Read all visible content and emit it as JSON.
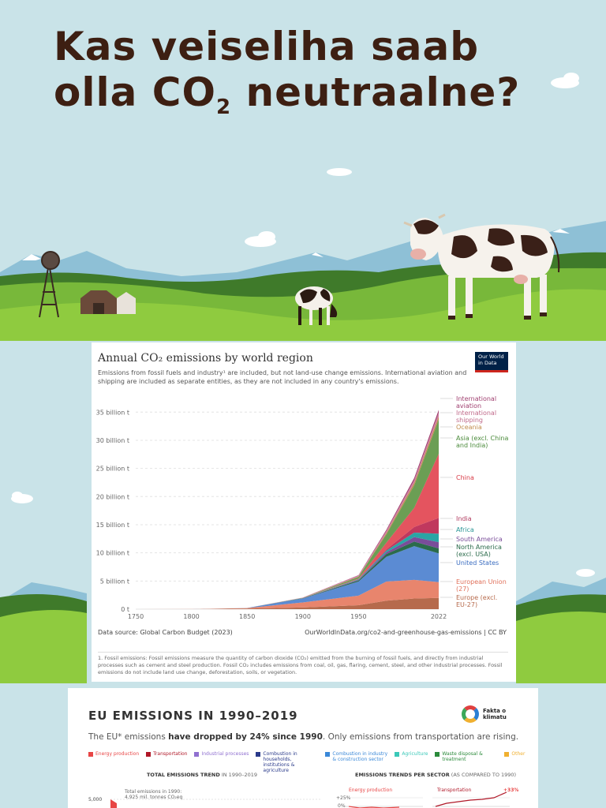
{
  "slide1": {
    "title_main": "Kas veiseliha saab olla CO",
    "title_sub": "2",
    "title_end": " neutraalne?"
  },
  "chart_card": {
    "title": "Annual CO₂ emissions by world region",
    "subtitle": "Emissions from fossil fuels and industry¹ are included, but not land-use change emissions. International aviation and shipping are included as separate entities, as they are not included in any country's emissions.",
    "logo": "Our World in Data",
    "source_left": "Data source: Global Carbon Budget (2023)",
    "source_right": "OurWorldInData.org/co2-and-greenhouse-gas-emissions | CC BY",
    "note": "1. Fossil emissions: Fossil emissions measure the quantity of carbon dioxide (CO₂) emitted from the burning of fossil fuels, and directly from industrial processes such as cement and steel production. Fossil CO₂ includes emissions from coal, oil, gas, flaring, cement, steel, and other industrial processes. Fossil emissions do not include land use change, deforestation, soils, or vegetation."
  },
  "chart_data": {
    "type": "area",
    "title": "Annual CO₂ emissions by world region",
    "x": [
      1750,
      1800,
      1850,
      1900,
      1950,
      1975,
      2000,
      2022
    ],
    "x_ticks": [
      "1750",
      "1800",
      "1850",
      "1900",
      "1950",
      "2022"
    ],
    "y_ticks": [
      "0 t",
      "5 billion t",
      "10 billion t",
      "15 billion t",
      "20 billion t",
      "25 billion t",
      "30 billion t",
      "35 billion t"
    ],
    "ylim": [
      0,
      37
    ],
    "series": [
      {
        "name": "Europe (excl. EU-27)",
        "color": "#b66a4c",
        "values": [
          0,
          0,
          0.1,
          0.3,
          0.7,
          1.5,
          1.9,
          2.0
        ]
      },
      {
        "name": "European Union (27)",
        "color": "#e8856d",
        "values": [
          0,
          0.01,
          0.1,
          0.9,
          1.7,
          3.4,
          3.3,
          2.8
        ]
      },
      {
        "name": "United States",
        "color": "#5b8bd3",
        "values": [
          0,
          0,
          0.01,
          0.7,
          2.5,
          4.4,
          6.0,
          5.1
        ]
      },
      {
        "name": "North America (excl. USA)",
        "color": "#2b6b4b",
        "values": [
          0,
          0,
          0,
          0.05,
          0.2,
          0.5,
          0.8,
          0.9
        ]
      },
      {
        "name": "South America",
        "color": "#7a4d9a",
        "values": [
          0,
          0,
          0,
          0.01,
          0.1,
          0.3,
          0.8,
          1.1
        ]
      },
      {
        "name": "Africa",
        "color": "#2aa5a5",
        "values": [
          0,
          0,
          0,
          0.01,
          0.1,
          0.3,
          0.8,
          1.5
        ]
      },
      {
        "name": "India",
        "color": "#c0385e",
        "values": [
          0,
          0,
          0,
          0.01,
          0.05,
          0.2,
          1.0,
          2.8
        ]
      },
      {
        "name": "China",
        "color": "#e4545f",
        "values": [
          0,
          0,
          0,
          0,
          0.1,
          1.2,
          3.4,
          11.4
        ]
      },
      {
        "name": "Asia (excl. China and India)",
        "color": "#6b9e54",
        "values": [
          0,
          0,
          0,
          0.02,
          0.3,
          1.5,
          4.0,
          6.1
        ]
      },
      {
        "name": "Oceania",
        "color": "#c08c4c",
        "values": [
          0,
          0,
          0,
          0.01,
          0.05,
          0.2,
          0.4,
          0.5
        ]
      },
      {
        "name": "International shipping",
        "color": "#d080a0",
        "values": [
          0,
          0,
          0,
          0.05,
          0.2,
          0.4,
          0.5,
          0.7
        ]
      },
      {
        "name": "International aviation",
        "color": "#a04070",
        "values": [
          0,
          0,
          0,
          0,
          0.05,
          0.2,
          0.4,
          0.5
        ]
      }
    ],
    "legend_labels": [
      {
        "text": "International\naviation",
        "color": "#a04070"
      },
      {
        "text": "International\nshipping",
        "color": "#c06a8a"
      },
      {
        "text": "Oceania",
        "color": "#c08c4c"
      },
      {
        "text": "Asia (excl. China\nand India)",
        "color": "#4a8a3a"
      },
      {
        "text": "China",
        "color": "#d83a46"
      },
      {
        "text": "India",
        "color": "#b03a5e"
      },
      {
        "text": "Africa",
        "color": "#2a9595"
      },
      {
        "text": "South America",
        "color": "#7a4d9a"
      },
      {
        "text": "North America\n(excl. USA)",
        "color": "#2b6b4b"
      },
      {
        "text": "United States",
        "color": "#3a6cc0"
      },
      {
        "text": "European Union\n(27)",
        "color": "#e0705a"
      },
      {
        "text": "Europe (excl.\nEU-27)",
        "color": "#b66a4c"
      }
    ]
  },
  "eu_card": {
    "title": "EU EMISSIONS IN 1990–2019",
    "subtitle_pre": "The EU* emissions ",
    "subtitle_bold": "have dropped by 24% since 1990",
    "subtitle_post": ". Only emissions from transportation are rising.",
    "logo": "Fakta o klimatu",
    "legend": [
      {
        "label": "Energy production",
        "color": "#e84545"
      },
      {
        "label": "Transportation",
        "color": "#b01828"
      },
      {
        "label": "Industrial processes",
        "color": "#9070d0"
      },
      {
        "label": "Combustion in households, institutions & agriculture",
        "color": "#2a3a8a"
      },
      {
        "label": "Combustion in industry & construction sector",
        "color": "#3a88d8"
      },
      {
        "label": "Agriculture",
        "color": "#3ac8b8"
      },
      {
        "label": "Waste disposal & treatment",
        "color": "#2a8a3a"
      },
      {
        "label": "Other",
        "color": "#f0b030"
      }
    ],
    "left_heading": "TOTAL EMISSIONS TREND",
    "left_heading_light": " IN 1990–2019",
    "right_heading": "EMISSIONS TRENDS PER SECTOR",
    "right_heading_light": " (AS COMPARED TO 1990)",
    "y5000": "5,000",
    "total_note_1": "Total emissions in 1990:",
    "total_note_2": "4,925 mil. tonnes CO₂eq",
    "energy_label": "Energy production",
    "transport_label": "Transportation",
    "plus25": "+25%",
    "zero": "0%",
    "transport_change": "+33%"
  }
}
